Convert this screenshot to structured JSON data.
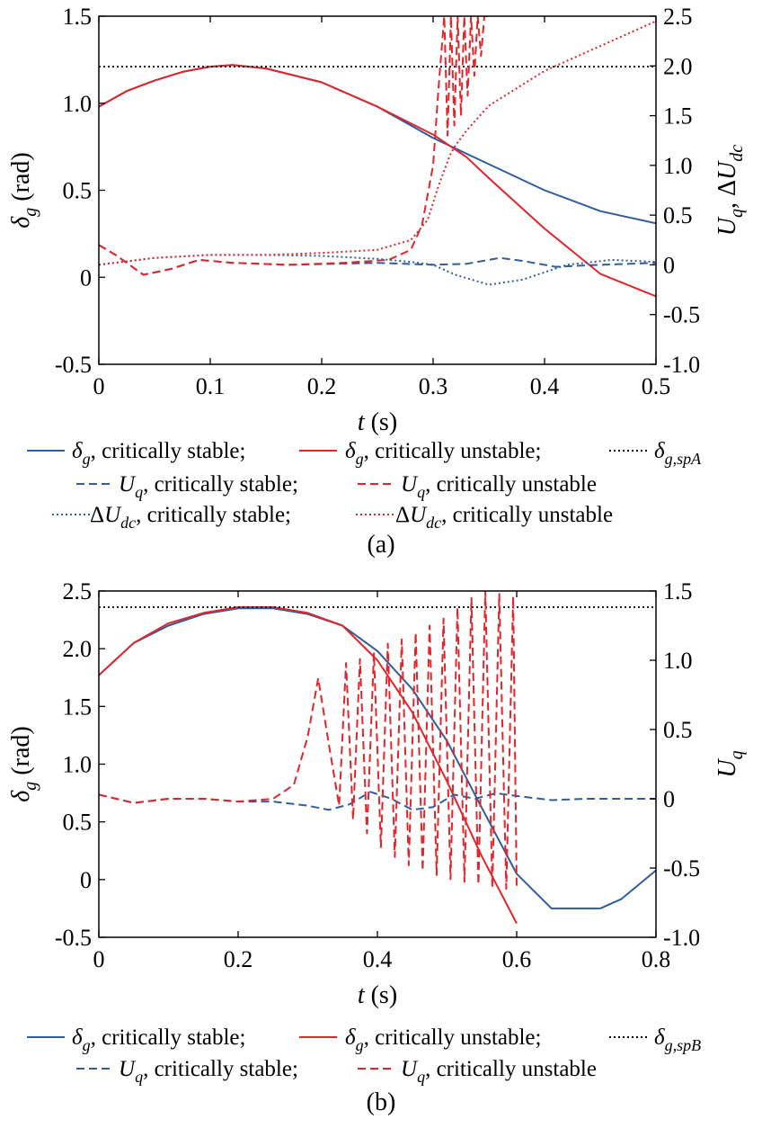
{
  "colors": {
    "blue": "#2f5d9e",
    "red": "#e0262b",
    "black": "#000000"
  },
  "chart_data": [
    {
      "type": "line",
      "panel_label": "(a)",
      "xlabel": {
        "italic": "t",
        "rest": " (s)"
      },
      "ylabel_left": {
        "italic": "δ",
        "sub": "g",
        "rest": " (rad)"
      },
      "ylabel_right": "Uq, ΔUdc",
      "xlim": [
        0,
        0.5
      ],
      "ylim_left": [
        -0.5,
        1.5
      ],
      "ylim_right": [
        -1.0,
        2.5
      ],
      "xticks": [
        "0",
        "0.1",
        "0.2",
        "0.3",
        "0.4",
        "0.5"
      ],
      "yticks_left": [
        "-0.5",
        "0",
        "0.5",
        "1.0",
        "1.5"
      ],
      "yticks_right": [
        "-1.0",
        "-0.5",
        "0",
        "0.5",
        "1.0",
        "1.5",
        "2.0",
        "2.5"
      ],
      "series": [
        {
          "name": "δg, critically stable",
          "axis": "left",
          "color": "blue",
          "dash": "solid",
          "x": [
            0,
            0.025,
            0.05,
            0.075,
            0.1,
            0.12,
            0.15,
            0.2,
            0.25,
            0.3,
            0.35,
            0.4,
            0.45,
            0.5
          ],
          "y": [
            0.98,
            1.07,
            1.13,
            1.18,
            1.21,
            1.22,
            1.2,
            1.12,
            0.98,
            0.8,
            0.65,
            0.5,
            0.38,
            0.31
          ]
        },
        {
          "name": "δg, critically unstable",
          "axis": "left",
          "color": "red",
          "dash": "solid",
          "x": [
            0,
            0.025,
            0.05,
            0.075,
            0.1,
            0.12,
            0.15,
            0.2,
            0.25,
            0.3,
            0.33,
            0.35,
            0.4,
            0.45,
            0.5
          ],
          "y": [
            0.98,
            1.07,
            1.13,
            1.18,
            1.21,
            1.22,
            1.2,
            1.12,
            0.98,
            0.82,
            0.69,
            0.57,
            0.28,
            0.02,
            -0.11
          ]
        },
        {
          "name": "δg,spA",
          "axis": "left",
          "color": "black",
          "dash": "dot",
          "x": [
            0,
            0.5
          ],
          "y": [
            1.21,
            1.21
          ]
        },
        {
          "name": "Uq, critically stable",
          "axis": "right",
          "color": "blue",
          "dash": "dash",
          "x": [
            0,
            0.015,
            0.04,
            0.065,
            0.09,
            0.12,
            0.17,
            0.25,
            0.3,
            0.33,
            0.36,
            0.38,
            0.41,
            0.45,
            0.5
          ],
          "y": [
            0.2,
            0.1,
            -0.1,
            -0.04,
            0.05,
            0.02,
            0.0,
            0.02,
            0.0,
            0.01,
            0.07,
            0.04,
            -0.02,
            0.0,
            0.02
          ]
        },
        {
          "name": "Uq, critically unstable",
          "axis": "right",
          "color": "red",
          "dash": "dash",
          "x": [
            0,
            0.015,
            0.04,
            0.065,
            0.09,
            0.12,
            0.17,
            0.22,
            0.26,
            0.28,
            0.29,
            0.3,
            0.305,
            0.31,
            0.313,
            0.316,
            0.319,
            0.322,
            0.325,
            0.328,
            0.331,
            0.334,
            0.337,
            0.34,
            0.343,
            0.346,
            0.35
          ],
          "y": [
            0.2,
            0.1,
            -0.1,
            -0.04,
            0.05,
            0.02,
            0.0,
            0.02,
            0.05,
            0.15,
            0.4,
            1.0,
            1.8,
            2.5,
            1.3,
            2.5,
            1.4,
            2.5,
            1.5,
            2.5,
            1.7,
            2.5,
            1.9,
            2.5,
            2.1,
            2.5,
            2.5
          ]
        },
        {
          "name": "ΔUdc, critically stable",
          "axis": "right",
          "color": "blue",
          "dash": "dot",
          "x": [
            0,
            0.05,
            0.1,
            0.15,
            0.2,
            0.25,
            0.28,
            0.3,
            0.32,
            0.35,
            0.38,
            0.42,
            0.46,
            0.5
          ],
          "y": [
            0.0,
            0.07,
            0.1,
            0.1,
            0.09,
            0.06,
            0.03,
            0.0,
            -0.1,
            -0.2,
            -0.15,
            0.0,
            0.05,
            0.03
          ]
        },
        {
          "name": "ΔUdc, critically unstable",
          "axis": "right",
          "color": "red",
          "dash": "dot",
          "x": [
            0,
            0.05,
            0.1,
            0.15,
            0.2,
            0.25,
            0.28,
            0.295,
            0.305,
            0.315,
            0.32,
            0.33,
            0.35,
            0.4,
            0.45,
            0.5
          ],
          "y": [
            0.0,
            0.07,
            0.1,
            0.1,
            0.12,
            0.15,
            0.25,
            0.45,
            0.8,
            1.1,
            1.2,
            1.35,
            1.6,
            1.95,
            2.2,
            2.45
          ]
        }
      ],
      "legend": [
        [
          {
            "key": "s0",
            "color": "blue",
            "dash": "solid",
            "label": "δg, critically stable;"
          },
          {
            "key": "s1",
            "color": "red",
            "dash": "solid",
            "label": "δg, critically unstable;"
          },
          {
            "key": "s2",
            "color": "black",
            "dash": "dot",
            "label": "δg,spA"
          }
        ],
        [
          {
            "key": "s3",
            "color": "blue",
            "dash": "dash",
            "label": "Uq, critically stable;"
          },
          {
            "key": "s4",
            "color": "red",
            "dash": "dash",
            "label": "Uq, critically unstable"
          }
        ],
        [
          {
            "key": "s5",
            "color": "blue",
            "dash": "dot",
            "label": "ΔUdc, critically stable;"
          },
          {
            "key": "s6",
            "color": "red",
            "dash": "dot",
            "label": "ΔUdc, critically unstable"
          }
        ]
      ]
    },
    {
      "type": "line",
      "panel_label": "(b)",
      "xlabel": {
        "italic": "t",
        "rest": " (s)"
      },
      "ylabel_left": {
        "italic": "δ",
        "sub": "g",
        "rest": " (rad)"
      },
      "ylabel_right": "Uq",
      "xlim": [
        0,
        0.8
      ],
      "ylim_left": [
        -0.5,
        2.5
      ],
      "ylim_right": [
        -1.0,
        1.5
      ],
      "xticks": [
        "0",
        "0.2",
        "0.4",
        "0.6",
        "0.8"
      ],
      "yticks_left": [
        "-0.5",
        "0",
        "0.5",
        "1.0",
        "1.5",
        "2.0",
        "2.5"
      ],
      "yticks_right": [
        "-1.0",
        "-0.5",
        "0",
        "0.5",
        "1.0",
        "1.5"
      ],
      "series": [
        {
          "name": "δg, critically stable",
          "axis": "left",
          "color": "blue",
          "dash": "solid",
          "x": [
            0,
            0.05,
            0.1,
            0.15,
            0.2,
            0.25,
            0.3,
            0.35,
            0.4,
            0.45,
            0.5,
            0.55,
            0.6,
            0.65,
            0.7,
            0.72,
            0.75,
            0.8
          ],
          "y": [
            1.77,
            2.05,
            2.2,
            2.3,
            2.35,
            2.35,
            2.3,
            2.2,
            1.98,
            1.65,
            1.2,
            0.62,
            0.05,
            -0.25,
            -0.25,
            -0.25,
            -0.17,
            0.08
          ]
        },
        {
          "name": "δg, critically unstable",
          "axis": "left",
          "color": "red",
          "dash": "solid",
          "x": [
            0,
            0.05,
            0.1,
            0.15,
            0.2,
            0.25,
            0.3,
            0.35,
            0.4,
            0.45,
            0.5,
            0.55,
            0.6
          ],
          "y": [
            1.77,
            2.05,
            2.22,
            2.31,
            2.36,
            2.36,
            2.31,
            2.2,
            1.9,
            1.45,
            0.85,
            0.2,
            -0.38
          ]
        },
        {
          "name": "δg,spB",
          "axis": "left",
          "color": "black",
          "dash": "dot",
          "x": [
            0,
            0.8
          ],
          "y": [
            2.36,
            2.36
          ]
        },
        {
          "name": "Uq, critically stable",
          "axis": "right",
          "color": "blue",
          "dash": "dash",
          "x": [
            0,
            0.05,
            0.1,
            0.15,
            0.2,
            0.25,
            0.3,
            0.33,
            0.36,
            0.39,
            0.42,
            0.45,
            0.48,
            0.51,
            0.54,
            0.57,
            0.6,
            0.65,
            0.7,
            0.75,
            0.8
          ],
          "y": [
            0.03,
            -0.03,
            0.0,
            0.0,
            -0.02,
            -0.02,
            -0.05,
            -0.08,
            -0.04,
            0.05,
            0.0,
            -0.08,
            -0.06,
            0.03,
            0.0,
            0.04,
            0.02,
            -0.01,
            0.0,
            0.0,
            0.0
          ]
        },
        {
          "name": "Uq, critically unstable",
          "axis": "right",
          "color": "red",
          "dash": "dash",
          "x": [
            0,
            0.05,
            0.1,
            0.15,
            0.2,
            0.25,
            0.28,
            0.3,
            0.315,
            0.33,
            0.345,
            0.355,
            0.365,
            0.375,
            0.385,
            0.395,
            0.405,
            0.415,
            0.425,
            0.435,
            0.445,
            0.455,
            0.465,
            0.475,
            0.485,
            0.495,
            0.505,
            0.515,
            0.525,
            0.535,
            0.545,
            0.555,
            0.565,
            0.575,
            0.585,
            0.595,
            0.6
          ],
          "y": [
            0.03,
            -0.03,
            0.0,
            0.0,
            -0.02,
            0.0,
            0.1,
            0.45,
            0.87,
            0.4,
            -0.05,
            0.98,
            -0.15,
            1.01,
            -0.25,
            1.05,
            -0.35,
            1.12,
            -0.42,
            1.15,
            -0.48,
            1.2,
            -0.52,
            1.25,
            -0.55,
            1.3,
            -0.58,
            1.38,
            -0.6,
            1.45,
            -0.62,
            1.5,
            -0.64,
            1.48,
            -0.65,
            1.46,
            -0.65
          ]
        }
      ],
      "legend": [
        [
          {
            "key": "s0",
            "color": "blue",
            "dash": "solid",
            "label": "δg, critically stable;"
          },
          {
            "key": "s1",
            "color": "red",
            "dash": "solid",
            "label": "δg, critically unstable;"
          },
          {
            "key": "s2",
            "color": "black",
            "dash": "dot",
            "label": "δg,spB"
          }
        ],
        [
          {
            "key": "s3",
            "color": "blue",
            "dash": "dash",
            "label": "Uq, critically stable;"
          },
          {
            "key": "s4",
            "color": "red",
            "dash": "dash",
            "label": "Uq, critically unstable"
          }
        ]
      ]
    }
  ]
}
